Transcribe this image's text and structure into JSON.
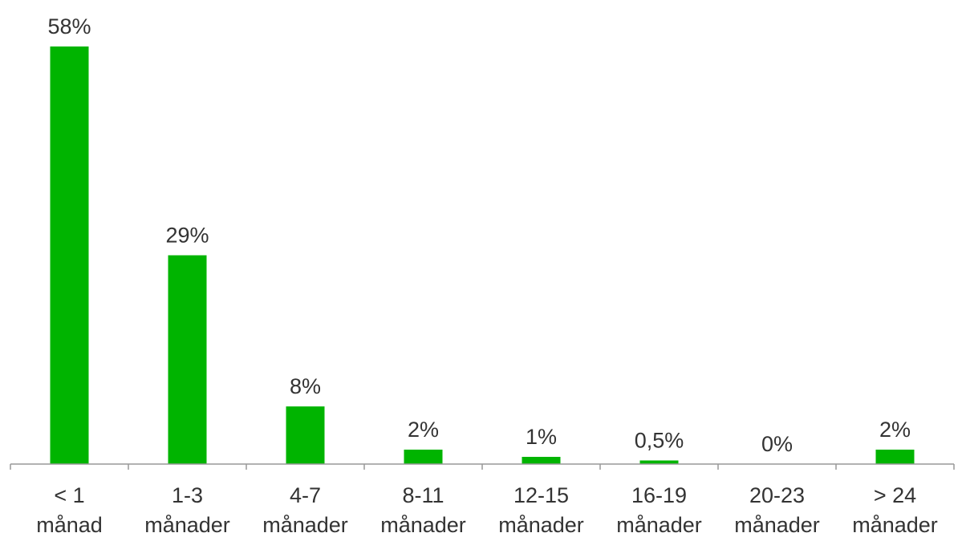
{
  "chart_data": {
    "type": "bar",
    "title": "",
    "xlabel": "",
    "ylabel": "",
    "categories": [
      [
        "< 1",
        "månad"
      ],
      [
        "1-3",
        "månader"
      ],
      [
        "4-7",
        "månader"
      ],
      [
        "8-11",
        "månader"
      ],
      [
        "12-15",
        "månader"
      ],
      [
        "16-19",
        "månader"
      ],
      [
        "20-23",
        "månader"
      ],
      [
        "> 24",
        "månader"
      ]
    ],
    "values": [
      58,
      29,
      8,
      2,
      1,
      0.5,
      0,
      2
    ],
    "data_labels": [
      "58%",
      "29%",
      "8%",
      "2%",
      "1%",
      "0,5%",
      "0%",
      "2%"
    ],
    "unit": "%",
    "ylim": [
      0,
      58
    ],
    "grid": false,
    "legend": "none",
    "colors": {
      "bar": "#00b400",
      "axis": "#999999",
      "text": "#333333"
    }
  }
}
